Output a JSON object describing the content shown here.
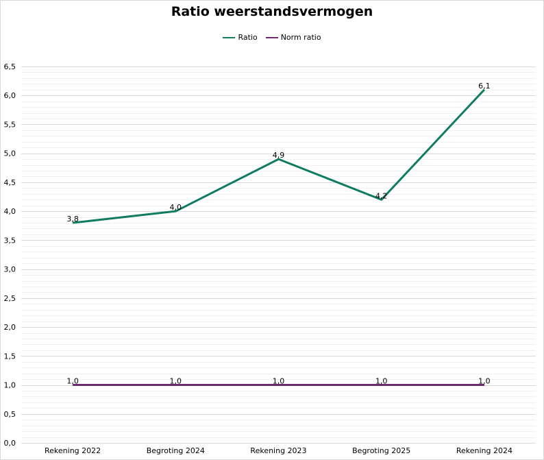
{
  "chart_data": {
    "type": "line",
    "title": "Ratio weerstandsvermogen",
    "categories": [
      "Rekening 2022",
      "Begroting 2024",
      "Rekening 2023",
      "Begroting 2025",
      "Rekening 2024"
    ],
    "series": [
      {
        "name": "Ratio",
        "values": [
          3.8,
          4.0,
          4.9,
          4.2,
          6.1
        ],
        "labels": [
          "3,8",
          "4,0",
          "4,9",
          "4,2",
          "6,1"
        ],
        "color": "#0f7b61"
      },
      {
        "name": "Norm ratio",
        "values": [
          1.0,
          1.0,
          1.0,
          1.0,
          1.0
        ],
        "labels": [
          "1,0",
          "1,0",
          "1,0",
          "1,0",
          "1,0"
        ],
        "color": "#6b2a6b"
      }
    ],
    "ylim": [
      0,
      6.5
    ],
    "yticks": [
      "0,0",
      "0,5",
      "1,0",
      "1,5",
      "2,0",
      "2,5",
      "3,0",
      "3,5",
      "4,0",
      "4,5",
      "5,0",
      "5,5",
      "6,0",
      "6,5"
    ],
    "grid": true,
    "legend_position": "top-center",
    "xlabel": "",
    "ylabel": ""
  }
}
